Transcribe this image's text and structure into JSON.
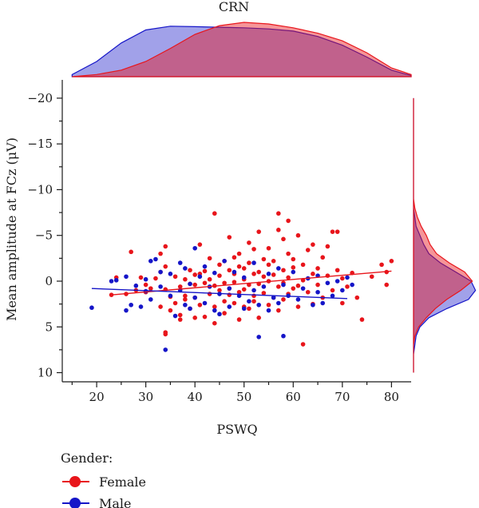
{
  "chart_data": {
    "type": "scatter",
    "title": "CRN",
    "xlabel": "PSWQ",
    "ylabel": "Mean amplitude at FCz (μV)",
    "xlim": [
      13,
      84
    ],
    "ylim": [
      -22,
      11
    ],
    "y_inverted": true,
    "x_ticks": [
      20,
      30,
      40,
      50,
      60,
      70,
      80
    ],
    "y_ticks": [
      -20,
      -15,
      -10,
      -5,
      0,
      5,
      10
    ],
    "grid": false,
    "legend": {
      "title": "Gender:",
      "position": "bottom-left"
    },
    "series": [
      {
        "name": "Female",
        "color": "#e8151b",
        "regression": {
          "x": [
            23,
            80
          ],
          "y": [
            1.5,
            -1.1
          ]
        },
        "points": [
          [
            23,
            1.5
          ],
          [
            24,
            -0.4
          ],
          [
            26,
            1.4
          ],
          [
            27,
            -3.2
          ],
          [
            28,
            1.0
          ],
          [
            29,
            -0.4
          ],
          [
            30,
            1.2
          ],
          [
            30,
            0.4
          ],
          [
            31,
            0.8
          ],
          [
            32,
            -0.3
          ],
          [
            33,
            -1.0
          ],
          [
            33,
            2.8
          ],
          [
            33,
            -3.0
          ],
          [
            34,
            -3.8
          ],
          [
            34,
            -1.6
          ],
          [
            34,
            0.9
          ],
          [
            34,
            5.8
          ],
          [
            34,
            5.6
          ],
          [
            35,
            1.7
          ],
          [
            35,
            3.2
          ],
          [
            36,
            -0.5
          ],
          [
            36,
            2.4
          ],
          [
            37,
            0.6
          ],
          [
            37,
            3.7
          ],
          [
            37,
            4.2
          ],
          [
            38,
            1.6
          ],
          [
            38,
            -0.2
          ],
          [
            38,
            2.0
          ],
          [
            39,
            0.3
          ],
          [
            39,
            -1.2
          ],
          [
            39,
            3.0
          ],
          [
            40,
            -0.7
          ],
          [
            40,
            0.4
          ],
          [
            40,
            4.0
          ],
          [
            40,
            1.8
          ],
          [
            41,
            -0.8
          ],
          [
            41,
            2.6
          ],
          [
            41,
            -4.0
          ],
          [
            42,
            0.2
          ],
          [
            42,
            -1.1
          ],
          [
            42,
            3.9
          ],
          [
            43,
            1.4
          ],
          [
            43,
            -2.5
          ],
          [
            43,
            -0.2
          ],
          [
            44,
            -7.4
          ],
          [
            44,
            2.8
          ],
          [
            44,
            0.5
          ],
          [
            44,
            4.6
          ],
          [
            45,
            -1.8
          ],
          [
            45,
            1.0
          ],
          [
            45,
            -0.6
          ],
          [
            46,
            2.2
          ],
          [
            46,
            -2.2
          ],
          [
            46,
            0.2
          ],
          [
            46,
            3.5
          ],
          [
            47,
            -1.2
          ],
          [
            47,
            0.8
          ],
          [
            47,
            -4.8
          ],
          [
            47,
            1.5
          ],
          [
            48,
            -2.6
          ],
          [
            48,
            0.1
          ],
          [
            48,
            2.4
          ],
          [
            48,
            -0.8
          ],
          [
            49,
            -1.6
          ],
          [
            49,
            1.2
          ],
          [
            49,
            -3.0
          ],
          [
            49,
            4.2
          ],
          [
            50,
            -0.2
          ],
          [
            50,
            2.8
          ],
          [
            50,
            -1.4
          ],
          [
            50,
            0.9
          ],
          [
            51,
            -4.2
          ],
          [
            51,
            0.4
          ],
          [
            51,
            3.0
          ],
          [
            51,
            -2.0
          ],
          [
            52,
            -0.8
          ],
          [
            52,
            1.6
          ],
          [
            52,
            -3.5
          ],
          [
            52,
            2.2
          ],
          [
            53,
            -1.0
          ],
          [
            53,
            0.3
          ],
          [
            53,
            4.0
          ],
          [
            53,
            -5.4
          ],
          [
            54,
            -2.4
          ],
          [
            54,
            1.3
          ],
          [
            54,
            -0.5
          ],
          [
            55,
            -1.8
          ],
          [
            55,
            2.6
          ],
          [
            55,
            0.0
          ],
          [
            55,
            -3.6
          ],
          [
            56,
            -0.7
          ],
          [
            56,
            1.8
          ],
          [
            56,
            -2.2
          ],
          [
            57,
            -5.6
          ],
          [
            57,
            0.6
          ],
          [
            57,
            3.2
          ],
          [
            57,
            -7.4
          ],
          [
            58,
            -1.2
          ],
          [
            58,
            2.0
          ],
          [
            58,
            -4.6
          ],
          [
            58,
            0.2
          ],
          [
            59,
            -0.4
          ],
          [
            59,
            -6.6
          ],
          [
            59,
            1.4
          ],
          [
            59,
            -3.0
          ],
          [
            60,
            -2.4
          ],
          [
            60,
            0.8
          ],
          [
            60,
            -1.5
          ],
          [
            61,
            -5.0
          ],
          [
            61,
            0.5
          ],
          [
            61,
            2.8
          ],
          [
            62,
            -1.8
          ],
          [
            62,
            6.9
          ],
          [
            62,
            -0.1
          ],
          [
            63,
            -3.4
          ],
          [
            63,
            1.2
          ],
          [
            64,
            -0.8
          ],
          [
            64,
            -4.0
          ],
          [
            64,
            2.5
          ],
          [
            65,
            -1.4
          ],
          [
            65,
            0.4
          ],
          [
            66,
            -2.6
          ],
          [
            66,
            1.8
          ],
          [
            67,
            -0.6
          ],
          [
            67,
            -3.8
          ],
          [
            68,
            -5.4
          ],
          [
            68,
            1.0
          ],
          [
            69,
            -5.4
          ],
          [
            69,
            -1.2
          ],
          [
            70,
            -0.3
          ],
          [
            70,
            2.4
          ],
          [
            71,
            0.6
          ],
          [
            72,
            -0.9
          ],
          [
            73,
            1.8
          ],
          [
            74,
            4.2
          ],
          [
            76,
            -0.5
          ],
          [
            78,
            -1.8
          ],
          [
            79,
            -1.0
          ],
          [
            79,
            0.4
          ],
          [
            80,
            -2.2
          ]
        ]
      },
      {
        "name": "Male",
        "color": "#1515c8",
        "regression": {
          "x": [
            19,
            71
          ],
          "y": [
            0.8,
            1.9
          ]
        },
        "points": [
          [
            19,
            2.9
          ],
          [
            23,
            0.0
          ],
          [
            24,
            -0.1
          ],
          [
            26,
            3.2
          ],
          [
            26,
            -0.5
          ],
          [
            27,
            2.6
          ],
          [
            28,
            0.5
          ],
          [
            29,
            2.8
          ],
          [
            30,
            -0.2
          ],
          [
            30,
            1.1
          ],
          [
            31,
            -2.2
          ],
          [
            31,
            2.0
          ],
          [
            32,
            -2.4
          ],
          [
            33,
            -1.0
          ],
          [
            33,
            0.6
          ],
          [
            34,
            7.5
          ],
          [
            35,
            1.6
          ],
          [
            35,
            -0.8
          ],
          [
            36,
            3.8
          ],
          [
            37,
            1.0
          ],
          [
            37,
            -2.0
          ],
          [
            38,
            2.6
          ],
          [
            38,
            -1.4
          ],
          [
            39,
            0.3
          ],
          [
            39,
            3.0
          ],
          [
            40,
            -3.6
          ],
          [
            40,
            1.8
          ],
          [
            41,
            -0.5
          ],
          [
            42,
            2.4
          ],
          [
            42,
            -1.6
          ],
          [
            43,
            0.6
          ],
          [
            44,
            3.2
          ],
          [
            44,
            -0.9
          ],
          [
            45,
            1.4
          ],
          [
            45,
            3.6
          ],
          [
            46,
            -2.2
          ],
          [
            47,
            0.8
          ],
          [
            47,
            2.8
          ],
          [
            48,
            -1.0
          ],
          [
            49,
            1.6
          ],
          [
            50,
            3.0
          ],
          [
            50,
            -0.4
          ],
          [
            51,
            2.2
          ],
          [
            52,
            1.0
          ],
          [
            52,
            -2.0
          ],
          [
            53,
            6.1
          ],
          [
            53,
            2.6
          ],
          [
            54,
            0.6
          ],
          [
            55,
            -0.8
          ],
          [
            55,
            3.2
          ],
          [
            56,
            1.8
          ],
          [
            57,
            -1.4
          ],
          [
            57,
            2.4
          ],
          [
            58,
            0.4
          ],
          [
            58,
            6.0
          ],
          [
            59,
            1.6
          ],
          [
            60,
            -1.0
          ],
          [
            61,
            2.0
          ],
          [
            62,
            0.8
          ],
          [
            63,
            -0.3
          ],
          [
            64,
            2.6
          ],
          [
            65,
            1.2
          ],
          [
            65,
            -0.6
          ],
          [
            66,
            2.4
          ],
          [
            67,
            0.2
          ],
          [
            68,
            1.6
          ],
          [
            69,
            0.0
          ],
          [
            70,
            1.0
          ],
          [
            71,
            -0.4
          ],
          [
            72,
            0.4
          ]
        ]
      }
    ],
    "marginal_top": {
      "x": [
        15,
        20,
        25,
        30,
        35,
        40,
        45,
        50,
        55,
        60,
        65,
        70,
        75,
        80,
        84
      ],
      "female": [
        0.0,
        0.04,
        0.12,
        0.28,
        0.52,
        0.78,
        0.94,
        1.0,
        0.97,
        0.9,
        0.8,
        0.66,
        0.44,
        0.16,
        0.04
      ],
      "male": [
        0.04,
        0.28,
        0.62,
        0.86,
        0.93,
        0.92,
        0.91,
        0.9,
        0.88,
        0.84,
        0.74,
        0.58,
        0.36,
        0.12,
        0.02
      ]
    },
    "marginal_right": {
      "y": [
        -20,
        -16,
        -12,
        -10,
        -9,
        -8,
        -7,
        -6,
        -5,
        -4,
        -3,
        -2,
        -1,
        0,
        1,
        2,
        3,
        4,
        5,
        6,
        7,
        8,
        9,
        10
      ],
      "female": [
        0.0,
        0.0,
        0.0,
        0.0,
        0.0,
        0.02,
        0.06,
        0.12,
        0.2,
        0.26,
        0.36,
        0.56,
        0.8,
        0.92,
        0.74,
        0.52,
        0.34,
        0.2,
        0.08,
        0.02,
        0.0,
        0.0,
        0.0,
        0.0
      ],
      "male": [
        0.0,
        0.0,
        0.0,
        0.0,
        0.0,
        0.0,
        0.02,
        0.04,
        0.1,
        0.16,
        0.24,
        0.42,
        0.66,
        0.9,
        0.97,
        0.86,
        0.52,
        0.24,
        0.1,
        0.04,
        0.02,
        0.0,
        0.0,
        0.0
      ]
    }
  }
}
